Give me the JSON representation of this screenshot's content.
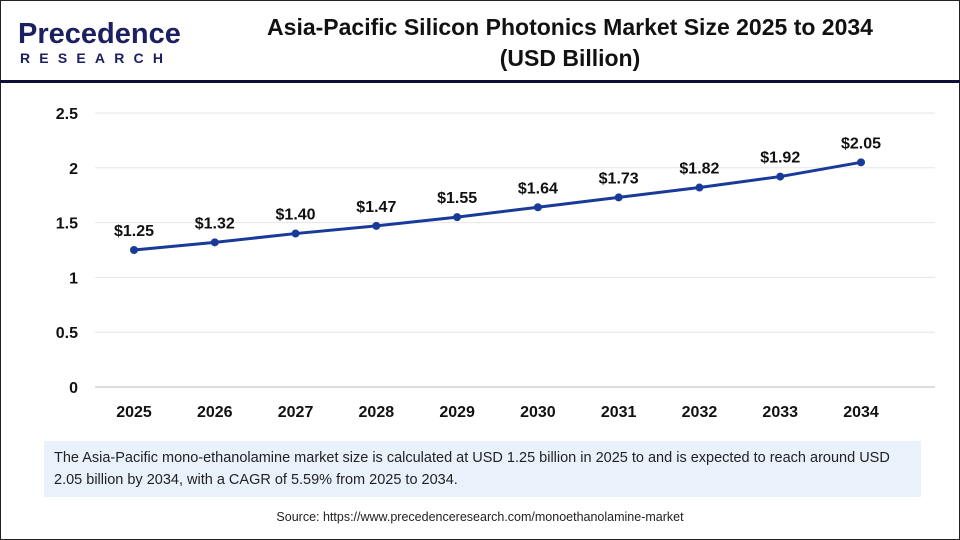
{
  "logo": {
    "line1": "Precedence",
    "line2": "RESEARCH"
  },
  "title": [
    "Asia-Pacific Silicon Photonics Market Size 2025 to 2034",
    "(USD Billion)"
  ],
  "chart_data": {
    "type": "line",
    "title": "Asia-Pacific Silicon Photonics Market Size 2025 to 2034 (USD Billion)",
    "categories": [
      "2025",
      "2026",
      "2027",
      "2028",
      "2029",
      "2030",
      "2031",
      "2032",
      "2033",
      "2034"
    ],
    "values": [
      1.25,
      1.32,
      1.4,
      1.47,
      1.55,
      1.64,
      1.73,
      1.82,
      1.92,
      2.05
    ],
    "data_labels": [
      "$1.25",
      "$1.32",
      "$1.40",
      "$1.47",
      "$1.55",
      "$1.64",
      "$1.73",
      "$1.82",
      "$1.92",
      "$2.05"
    ],
    "yticks": [
      "0",
      "0.5",
      "1",
      "1.5",
      "2",
      "2.5"
    ],
    "ylim": [
      0,
      2.5
    ],
    "grid": true,
    "line_color": "#1a3a9a"
  },
  "info_text": "The Asia-Pacific mono-ethanolamine market size is calculated at USD 1.25 billion in 2025 to and is expected to reach around USD 2.05 billion by 2034, with a CAGR of 5.59% from 2025 to 2034.",
  "source": "Source: https://www.precedenceresearch.com/monoethanolamine-market"
}
